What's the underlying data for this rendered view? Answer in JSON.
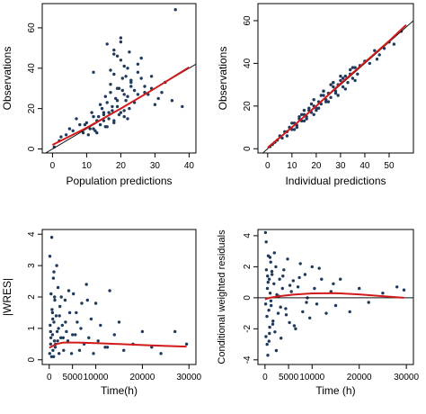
{
  "colors": {
    "points": "#1f3a5c",
    "identity_line": "#111111",
    "smooth_line": "#d11a1a",
    "frame": "#000000"
  },
  "chart_data": [
    {
      "id": "pred",
      "type": "scatter",
      "xlabel": "Population predictions",
      "ylabel": "Observations",
      "xlim": [
        -3,
        42
      ],
      "ylim": [
        -2,
        72
      ],
      "xticks": [
        0,
        10,
        20,
        30,
        40
      ],
      "yticks": [
        0,
        20,
        40,
        60
      ],
      "reference_line": {
        "x": [
          -3,
          42
        ],
        "y": [
          -3,
          42
        ]
      },
      "smooth_line": {
        "x": [
          0,
          10,
          20,
          30,
          40
        ],
        "y": [
          2,
          10.5,
          20,
          30,
          40.5
        ]
      },
      "points": {
        "x": [
          0.5,
          2,
          4,
          5,
          6,
          8,
          9,
          10,
          11,
          12,
          12.5,
          13,
          14,
          14.5,
          15,
          15.5,
          16,
          16.5,
          17,
          17.5,
          18,
          18.5,
          19,
          19.5,
          20,
          20.5,
          21,
          21.5,
          22,
          22.5,
          23,
          24,
          25,
          26,
          27,
          28,
          29,
          30,
          31,
          33,
          36,
          38,
          2.5,
          7,
          9.5,
          10.5,
          11.5,
          12,
          13,
          13.5,
          14,
          15,
          15.5,
          16,
          16.5,
          17,
          17.5,
          18,
          18,
          19,
          19.5,
          20,
          20.5,
          21,
          21.5,
          22,
          22.5,
          23,
          24,
          25,
          26,
          27,
          29,
          32,
          35,
          16,
          18,
          20,
          21,
          22,
          19,
          17,
          15,
          12,
          20,
          23,
          25,
          19,
          21,
          18
        ],
        "y": [
          1,
          4,
          7,
          10,
          9,
          12,
          8,
          13,
          10,
          16,
          9,
          14,
          12,
          20,
          17,
          11,
          23,
          15,
          28,
          19,
          13,
          25,
          21,
          30,
          18,
          35,
          27,
          24,
          40,
          20,
          33,
          29,
          38,
          45,
          31,
          27,
          36,
          22,
          25,
          33,
          69,
          21,
          6,
          15,
          12,
          7,
          18,
          10,
          8,
          16,
          22,
          14,
          26,
          11,
          18,
          32,
          21,
          14,
          37,
          24,
          17,
          44,
          29,
          19,
          36,
          26,
          48,
          31,
          23,
          42,
          35,
          28,
          30,
          28,
          24,
          52,
          49,
          55,
          41,
          15,
          46,
          39,
          18,
          38,
          53,
          34,
          27,
          30,
          16,
          47
        ]
      }
    },
    {
      "id": "ipred",
      "type": "scatter",
      "xlabel": "Individual predictions",
      "ylabel": "Observations",
      "xlim": [
        -4,
        60
      ],
      "ylim": [
        -2,
        68
      ],
      "xticks": [
        0,
        10,
        20,
        30,
        40,
        50
      ],
      "yticks": [
        0,
        20,
        40,
        60
      ],
      "reference_line": {
        "x": [
          -4,
          60
        ],
        "y": [
          -4,
          60
        ]
      },
      "smooth_line": {
        "x": [
          0,
          10,
          20,
          30,
          40,
          50,
          57
        ],
        "y": [
          0.5,
          10,
          20,
          30.5,
          40.5,
          50.5,
          58
        ]
      },
      "points": {
        "x": [
          1,
          2,
          3,
          4,
          5,
          6,
          7,
          8,
          9,
          10,
          11,
          12,
          13,
          14,
          15,
          16,
          17,
          18,
          19,
          20,
          21,
          22,
          23,
          24,
          25,
          26,
          27,
          28,
          29,
          30,
          31,
          32,
          33,
          34,
          35,
          36,
          37,
          38,
          40,
          42,
          44,
          46,
          48,
          50,
          52,
          55,
          8,
          10,
          12,
          14,
          16,
          18,
          20,
          22,
          24,
          26,
          28,
          30,
          32,
          34,
          36,
          11,
          13,
          15,
          17,
          19,
          21,
          23,
          25,
          27,
          29,
          31,
          35,
          15,
          19,
          23,
          27,
          45
        ],
        "y": [
          1,
          2,
          3,
          4,
          6,
          5,
          8,
          8,
          10,
          9,
          12,
          11,
          14,
          13,
          16,
          15,
          18,
          17,
          20,
          19,
          22,
          21,
          25,
          23,
          26,
          24,
          29,
          27,
          30,
          32,
          29,
          34,
          31,
          35,
          33,
          38,
          35,
          39,
          41,
          40,
          46,
          44,
          47,
          50,
          49,
          55,
          6,
          12,
          10,
          16,
          14,
          21,
          18,
          25,
          22,
          30,
          26,
          34,
          28,
          37,
          32,
          9,
          15,
          13,
          19,
          23,
          19,
          27,
          22,
          31,
          25,
          33,
          38,
          18,
          16,
          27,
          31,
          42
        ]
      }
    },
    {
      "id": "cwres-time",
      "type": "scatter",
      "xlabel": "Time(h)",
      "ylabel": "|WRES|",
      "xlim": [
        -1500,
        31500
      ],
      "ylim": [
        -0.15,
        4.15
      ],
      "xticks": [
        0,
        5000,
        10000,
        20000,
        30000
      ],
      "yticks": [
        0,
        1,
        2,
        3,
        4
      ],
      "smooth_line": {
        "x": [
          0,
          500,
          1500,
          3000,
          6000,
          10000,
          15000,
          20000,
          25000,
          29500
        ],
        "y": [
          0.38,
          0.42,
          0.5,
          0.55,
          0.55,
          0.53,
          0.5,
          0.47,
          0.44,
          0.42
        ]
      },
      "points": {
        "x": [
          100,
          200,
          300,
          400,
          500,
          600,
          700,
          800,
          900,
          1000,
          1100,
          1200,
          1300,
          1500,
          1700,
          1900,
          2100,
          2300,
          2500,
          2800,
          3100,
          3400,
          3700,
          4000,
          4400,
          4800,
          5200,
          5600,
          6000,
          6500,
          7000,
          7500,
          8000,
          8500,
          9000,
          9500,
          10000,
          10500,
          11000,
          12000,
          13000,
          14000,
          15000,
          16000,
          18000,
          20000,
          22000,
          24000,
          27000,
          29500,
          150,
          350,
          550,
          750,
          950,
          1150,
          1350,
          1600,
          1800,
          2000,
          2200,
          2600,
          3000,
          3500,
          4200,
          5000,
          5800,
          6800,
          8200,
          12500,
          300,
          700,
          1000
        ],
        "y": [
          0.2,
          1.1,
          0.5,
          2.1,
          0.1,
          1.6,
          0.8,
          0.3,
          2.6,
          1.2,
          0.6,
          1.9,
          0.4,
          1.4,
          0.9,
          2.3,
          0.2,
          1.7,
          0.7,
          1.1,
          0.3,
          1.9,
          0.9,
          0.6,
          1.5,
          0.2,
          2.1,
          0.8,
          1.2,
          0.3,
          1.8,
          0.5,
          2.4,
          0.7,
          1.3,
          0.2,
          1.8,
          0.6,
          1.1,
          0.4,
          2.2,
          0.8,
          1.2,
          0.3,
          0.5,
          0.9,
          0.4,
          0.2,
          0.9,
          0.5,
          3.3,
          0.7,
          3.9,
          1.3,
          0.1,
          2.0,
          0.5,
          3.0,
          0.6,
          1.0,
          1.4,
          2.0,
          0.7,
          1.2,
          2.2,
          0.8,
          1.5,
          1.0,
          1.9,
          0.4,
          0.9,
          1.5,
          2.8
        ]
      }
    },
    {
      "id": "cwres-time-signed",
      "type": "scatter",
      "xlabel": "Time (h)",
      "ylabel": "Conditional weighted residuals",
      "xlim": [
        -1500,
        31500
      ],
      "ylim": [
        -4.3,
        4.4
      ],
      "xticks": [
        0,
        5000,
        10000,
        20000,
        30000
      ],
      "yticks": [
        -4,
        -2,
        0,
        2,
        4
      ],
      "reference_line": {
        "x": [
          -1500,
          31500
        ],
        "y": [
          0,
          0
        ]
      },
      "smooth_line": {
        "x": [
          0,
          1000,
          3000,
          6000,
          10000,
          15000,
          20000,
          25000,
          29500
        ],
        "y": [
          -0.1,
          0.0,
          0.1,
          0.2,
          0.28,
          0.3,
          0.22,
          0.1,
          0.0
        ]
      },
      "points": {
        "x": [
          100,
          200,
          300,
          400,
          500,
          600,
          700,
          800,
          900,
          1000,
          1100,
          1200,
          1300,
          1500,
          1700,
          1900,
          2100,
          2300,
          2500,
          2800,
          3100,
          3400,
          3700,
          4000,
          4400,
          4800,
          5200,
          5600,
          6000,
          6500,
          7000,
          7500,
          8000,
          8500,
          9000,
          9500,
          10000,
          10500,
          11000,
          12000,
          13000,
          14000,
          15000,
          16000,
          18000,
          20000,
          22000,
          25000,
          28000,
          29500,
          250,
          450,
          650,
          850,
          1050,
          1250,
          1450,
          1650,
          2000,
          2400,
          2900,
          3300,
          3800,
          4500,
          5300,
          6200,
          7300,
          8800,
          11500,
          14500,
          150,
          550,
          950
        ],
        "y": [
          4.2,
          -2.5,
          1.8,
          -1.2,
          0.6,
          -3.7,
          2.7,
          -0.8,
          1.2,
          -1.9,
          0.3,
          2.3,
          -0.5,
          1.5,
          -1.5,
          0.9,
          -2.2,
          2.0,
          0.2,
          -1.0,
          1.2,
          -2.6,
          0.6,
          1.8,
          -0.7,
          2.5,
          -1.6,
          0.4,
          1.1,
          -2.0,
          0.7,
          2.2,
          -0.9,
          1.5,
          0.0,
          -1.3,
          2.0,
          0.6,
          -0.4,
          1.2,
          -1.0,
          0.4,
          -0.5,
          1.2,
          -0.9,
          0.6,
          -0.3,
          0.3,
          0.7,
          0.5,
          3.6,
          -3.0,
          1.0,
          -2.8,
          2.6,
          -0.2,
          1.7,
          -1.7,
          2.9,
          -3.4,
          0.1,
          -0.6,
          1.4,
          -1.1,
          0.8,
          -1.8,
          1.3,
          -0.3,
          1.9,
          0.9,
          -0.4,
          1.4,
          -2.3
        ]
      }
    }
  ]
}
